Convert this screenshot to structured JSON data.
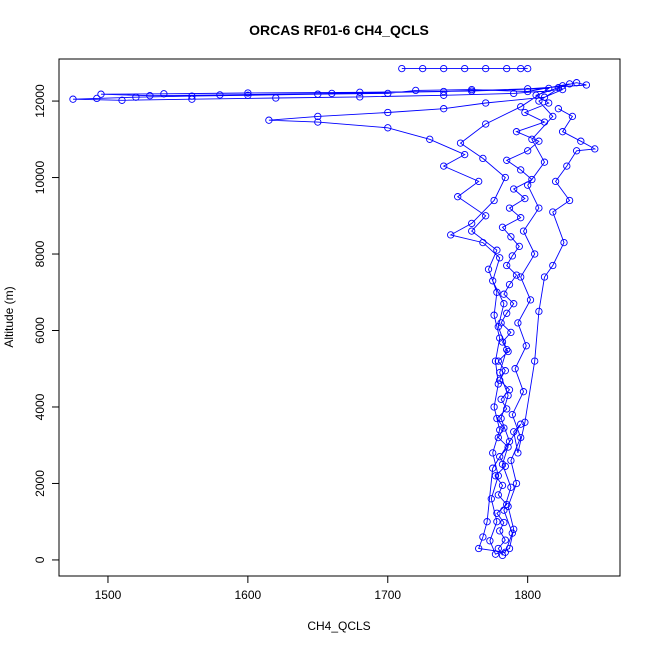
{
  "chart_data": {
    "type": "scatter",
    "title": "ORCAS RF01-6 CH4_QCLS",
    "xlabel": "CH4_QCLS",
    "ylabel": "Altitude (m)",
    "xlim": [
      1465,
      1866
    ],
    "ylim": [
      -420,
      13100
    ],
    "x_ticks": [
      1500,
      1600,
      1700,
      1800
    ],
    "y_ticks": [
      0,
      2000,
      4000,
      6000,
      8000,
      10000,
      12000
    ],
    "marker": "open-circle",
    "connected": true,
    "color": "#0000ff",
    "grid": false,
    "series": [
      {
        "values": [
          [
            1782,
            120
          ],
          [
            1779,
            300
          ],
          [
            1784,
            520
          ],
          [
            1780,
            760
          ],
          [
            1783,
            980
          ],
          [
            1778,
            1220
          ],
          [
            1785,
            1450
          ],
          [
            1779,
            1700
          ],
          [
            1782,
            1950
          ],
          [
            1777,
            2200
          ],
          [
            1784,
            2450
          ],
          [
            1780,
            2700
          ],
          [
            1786,
            2950
          ],
          [
            1779,
            3200
          ],
          [
            1783,
            3450
          ],
          [
            1778,
            3700
          ],
          [
            1785,
            3950
          ],
          [
            1781,
            4200
          ],
          [
            1787,
            4450
          ],
          [
            1780,
            4700
          ],
          [
            1784,
            4950
          ],
          [
            1779,
            5200
          ],
          [
            1786,
            5450
          ],
          [
            1782,
            5700
          ],
          [
            1788,
            5950
          ],
          [
            1781,
            6200
          ],
          [
            1785,
            6450
          ],
          [
            1790,
            6700
          ],
          [
            1783,
            6950
          ],
          [
            1787,
            7200
          ],
          [
            1792,
            7450
          ],
          [
            1785,
            7700
          ],
          [
            1789,
            7950
          ],
          [
            1794,
            8200
          ],
          [
            1788,
            8450
          ],
          [
            1782,
            8700
          ],
          [
            1795,
            8950
          ],
          [
            1787,
            9200
          ],
          [
            1798,
            9450
          ],
          [
            1790,
            9700
          ],
          [
            1803,
            9950
          ],
          [
            1795,
            10200
          ],
          [
            1785,
            10450
          ],
          [
            1800,
            10700
          ],
          [
            1808,
            10950
          ],
          [
            1792,
            11200
          ],
          [
            1812,
            11450
          ],
          [
            1798,
            11700
          ],
          [
            1815,
            11950
          ],
          [
            1806,
            12150
          ],
          [
            1822,
            12350
          ],
          [
            1830,
            12450
          ],
          [
            1800,
            12250
          ],
          [
            1760,
            12300
          ],
          [
            1720,
            12280
          ],
          [
            1700,
            12200
          ],
          [
            1650,
            12180
          ],
          [
            1600,
            12150
          ],
          [
            1560,
            12130
          ],
          [
            1520,
            12100
          ],
          [
            1492,
            12070
          ],
          [
            1475,
            12050
          ],
          [
            1510,
            12020
          ],
          [
            1560,
            12050
          ],
          [
            1620,
            12080
          ],
          [
            1680,
            12110
          ],
          [
            1740,
            12150
          ],
          [
            1790,
            12200
          ],
          [
            1825,
            12300
          ],
          [
            1812,
            12100
          ],
          [
            1770,
            11950
          ],
          [
            1740,
            11800
          ],
          [
            1700,
            11700
          ],
          [
            1650,
            11600
          ],
          [
            1615,
            11500
          ],
          [
            1650,
            11450
          ],
          [
            1700,
            11300
          ],
          [
            1730,
            11000
          ],
          [
            1755,
            10600
          ],
          [
            1740,
            10300
          ],
          [
            1765,
            9900
          ],
          [
            1750,
            9500
          ],
          [
            1770,
            9000
          ],
          [
            1760,
            8600
          ],
          [
            1778,
            8100
          ],
          [
            1772,
            7600
          ],
          [
            1778,
            7000
          ],
          [
            1776,
            6400
          ],
          [
            1780,
            5800
          ],
          [
            1777,
            5200
          ],
          [
            1779,
            4600
          ],
          [
            1776,
            4000
          ],
          [
            1780,
            3400
          ],
          [
            1775,
            2800
          ],
          [
            1779,
            2200
          ],
          [
            1774,
            1600
          ],
          [
            1778,
            1000
          ],
          [
            1773,
            500
          ],
          [
            1777,
            150
          ],
          [
            1787,
            300
          ],
          [
            1790,
            800
          ],
          [
            1786,
            1400
          ],
          [
            1792,
            2000
          ],
          [
            1788,
            2600
          ],
          [
            1795,
            3200
          ],
          [
            1789,
            3800
          ],
          [
            1797,
            4400
          ],
          [
            1791,
            5000
          ],
          [
            1799,
            5600
          ],
          [
            1793,
            6200
          ],
          [
            1802,
            6800
          ],
          [
            1795,
            7400
          ],
          [
            1805,
            8000
          ],
          [
            1797,
            8600
          ],
          [
            1808,
            9200
          ],
          [
            1800,
            9800
          ],
          [
            1812,
            10400
          ],
          [
            1803,
            11000
          ],
          [
            1818,
            11600
          ],
          [
            1808,
            12000
          ],
          [
            1825,
            12400
          ],
          [
            1835,
            12480
          ],
          [
            1842,
            12420
          ],
          [
            1800,
            12320
          ],
          [
            1740,
            12250
          ],
          [
            1660,
            12200
          ],
          [
            1580,
            12160
          ],
          [
            1530,
            12140
          ],
          [
            1495,
            12180
          ],
          [
            1540,
            12190
          ],
          [
            1600,
            12210
          ],
          [
            1680,
            12230
          ],
          [
            1760,
            12260
          ],
          [
            1815,
            12330
          ],
          [
            1795,
            11850
          ],
          [
            1770,
            11400
          ],
          [
            1752,
            10900
          ],
          [
            1768,
            10500
          ],
          [
            1784,
            10000
          ],
          [
            1776,
            9400
          ],
          [
            1760,
            8800
          ],
          [
            1745,
            8500
          ],
          [
            1768,
            8300
          ],
          [
            1780,
            7900
          ],
          [
            1775,
            7300
          ],
          [
            1783,
            6700
          ],
          [
            1779,
            6100
          ],
          [
            1785,
            5500
          ],
          [
            1780,
            4900
          ],
          [
            1786,
            4300
          ],
          [
            1781,
            3700
          ],
          [
            1787,
            3100
          ],
          [
            1782,
            2500
          ],
          [
            1788,
            1900
          ],
          [
            1783,
            1300
          ],
          [
            1789,
            700
          ],
          [
            1784,
            200
          ],
          [
            1765,
            300
          ],
          [
            1768,
            600
          ],
          [
            1771,
            1000
          ],
          [
            1775,
            2400
          ],
          [
            1795,
            3550
          ],
          [
            1790,
            3350
          ],
          [
            1793,
            2800
          ],
          [
            1798,
            3600
          ],
          [
            1805,
            5200
          ],
          [
            1808,
            6500
          ],
          [
            1812,
            7400
          ],
          [
            1818,
            7700
          ],
          [
            1826,
            8300
          ],
          [
            1818,
            9100
          ],
          [
            1830,
            9400
          ],
          [
            1820,
            9900
          ],
          [
            1828,
            10300
          ],
          [
            1835,
            10700
          ],
          [
            1848,
            10750
          ],
          [
            1838,
            10950
          ],
          [
            1825,
            11200
          ],
          [
            1832,
            11600
          ],
          [
            1822,
            11800
          ]
        ]
      },
      {
        "values": [
          [
            1710,
            12850
          ],
          [
            1725,
            12850
          ],
          [
            1740,
            12850
          ],
          [
            1755,
            12850
          ],
          [
            1770,
            12850
          ],
          [
            1785,
            12850
          ],
          [
            1795,
            12850
          ],
          [
            1800,
            12850
          ]
        ]
      }
    ]
  }
}
